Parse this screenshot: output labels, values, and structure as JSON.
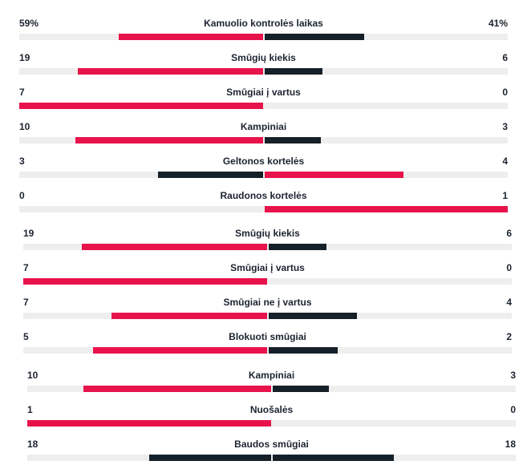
{
  "colors": {
    "win": "#e8134b",
    "lose": "#162029",
    "track": "#eeeeee"
  },
  "stats": [
    {
      "label": "Kamuolio kontrolės laikas",
      "left": "59%",
      "right": "41%",
      "left_value": 59,
      "right_value": 41
    },
    {
      "label": "Smūgių kiekis",
      "left": "19",
      "right": "6",
      "left_value": 19,
      "right_value": 6
    },
    {
      "label": "Smūgiai į vartus",
      "left": "7",
      "right": "0",
      "left_value": 7,
      "right_value": 0
    },
    {
      "label": "Kampiniai",
      "left": "10",
      "right": "3",
      "left_value": 10,
      "right_value": 3
    },
    {
      "label": "Geltonos kortelės",
      "left": "3",
      "right": "4",
      "left_value": 3,
      "right_value": 4
    },
    {
      "label": "Raudonos kortelės",
      "left": "0",
      "right": "1",
      "left_value": 0,
      "right_value": 1
    },
    {
      "label": "Smūgių kiekis",
      "left": "19",
      "right": "6",
      "left_value": 19,
      "right_value": 6
    },
    {
      "label": "Smūgiai į vartus",
      "left": "7",
      "right": "0",
      "left_value": 7,
      "right_value": 0
    },
    {
      "label": "Smūgiai ne į vartus",
      "left": "7",
      "right": "4",
      "left_value": 7,
      "right_value": 4
    },
    {
      "label": "Blokuoti smūgiai",
      "left": "5",
      "right": "2",
      "left_value": 5,
      "right_value": 2
    },
    {
      "label": "Kampiniai",
      "left": "10",
      "right": "3",
      "left_value": 10,
      "right_value": 3
    },
    {
      "label": "Nuošalės",
      "left": "1",
      "right": "0",
      "left_value": 1,
      "right_value": 0
    },
    {
      "label": "Baudos smūgiai",
      "left": "18",
      "right": "18",
      "left_value": 18,
      "right_value": 18
    }
  ]
}
